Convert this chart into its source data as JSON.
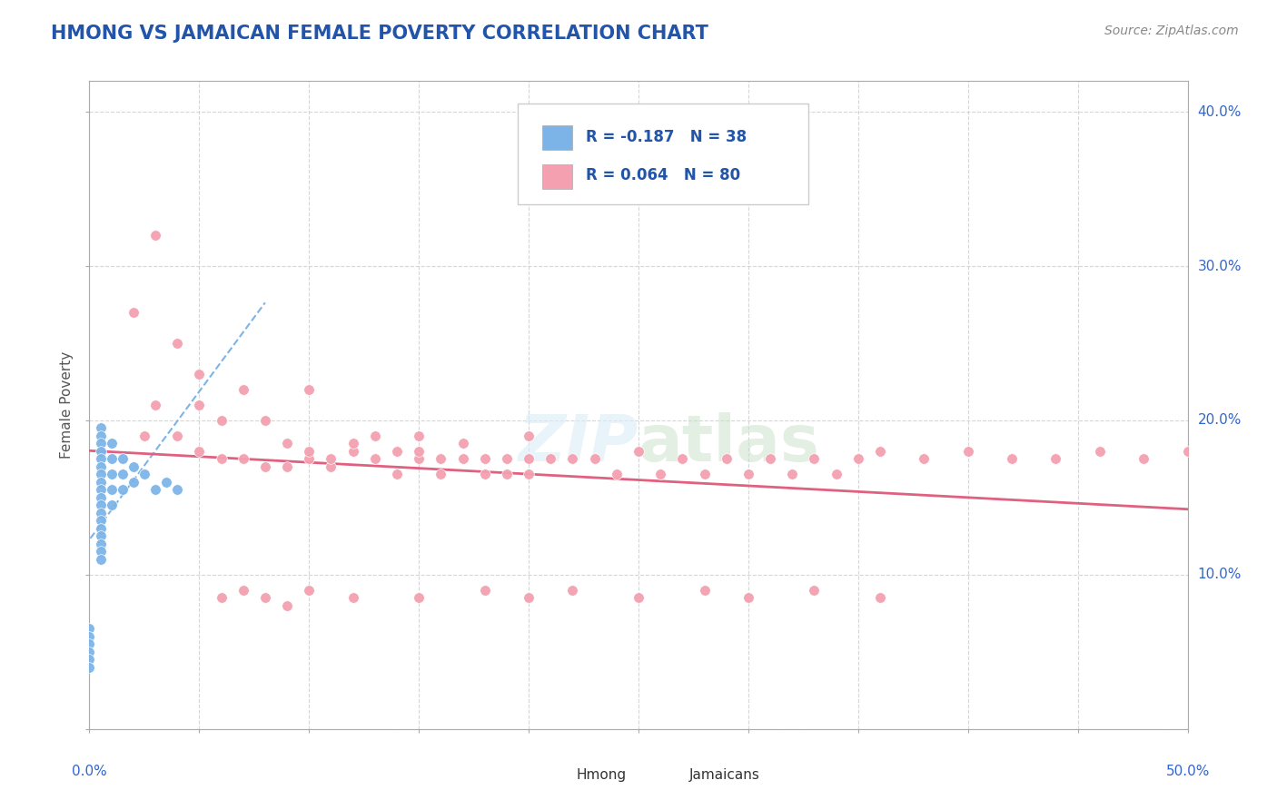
{
  "title": "HMONG VS JAMAICAN FEMALE POVERTY CORRELATION CHART",
  "source": "Source: ZipAtlas.com",
  "ylabel": "Female Poverty",
  "xlim": [
    0.0,
    0.5
  ],
  "ylim": [
    0.0,
    0.42
  ],
  "hmong_color": "#7cb4e8",
  "jamaican_color": "#f4a0b0",
  "jamaican_line_color": "#e06080",
  "hmong_line_color": "#7cb4e8",
  "hmong_R": -0.187,
  "hmong_N": 38,
  "jamaican_R": 0.064,
  "jamaican_N": 80,
  "legend_text_color": "#2255aa",
  "title_color": "#2255aa",
  "watermark": "ZIPatlas",
  "hmong_x": [
    0.005,
    0.005,
    0.005,
    0.005,
    0.005,
    0.005,
    0.005,
    0.005,
    0.005,
    0.005,
    0.005,
    0.005,
    0.005,
    0.005,
    0.005,
    0.005,
    0.005,
    0.005,
    0.01,
    0.01,
    0.01,
    0.01,
    0.01,
    0.015,
    0.015,
    0.015,
    0.02,
    0.02,
    0.025,
    0.03,
    0.035,
    0.04,
    0.0,
    0.0,
    0.0,
    0.0,
    0.0,
    0.0
  ],
  "hmong_y": [
    0.195,
    0.19,
    0.185,
    0.18,
    0.175,
    0.17,
    0.165,
    0.16,
    0.155,
    0.15,
    0.145,
    0.14,
    0.135,
    0.13,
    0.125,
    0.12,
    0.115,
    0.11,
    0.185,
    0.175,
    0.165,
    0.155,
    0.145,
    0.175,
    0.165,
    0.155,
    0.17,
    0.16,
    0.165,
    0.155,
    0.16,
    0.155,
    0.065,
    0.06,
    0.055,
    0.05,
    0.045,
    0.04
  ],
  "jamaican_x": [
    0.02,
    0.025,
    0.03,
    0.04,
    0.05,
    0.05,
    0.06,
    0.06,
    0.07,
    0.07,
    0.08,
    0.08,
    0.09,
    0.09,
    0.1,
    0.1,
    0.11,
    0.11,
    0.12,
    0.12,
    0.13,
    0.13,
    0.14,
    0.14,
    0.15,
    0.15,
    0.16,
    0.16,
    0.17,
    0.17,
    0.18,
    0.18,
    0.19,
    0.19,
    0.2,
    0.2,
    0.21,
    0.22,
    0.23,
    0.24,
    0.25,
    0.26,
    0.27,
    0.28,
    0.29,
    0.3,
    0.31,
    0.32,
    0.33,
    0.34,
    0.35,
    0.36,
    0.38,
    0.4,
    0.42,
    0.44,
    0.46,
    0.48,
    0.5,
    0.03,
    0.04,
    0.05,
    0.06,
    0.07,
    0.08,
    0.09,
    0.1,
    0.12,
    0.15,
    0.18,
    0.2,
    0.22,
    0.25,
    0.28,
    0.3,
    0.33,
    0.36,
    0.1,
    0.15,
    0.2
  ],
  "jamaican_y": [
    0.27,
    0.19,
    0.32,
    0.19,
    0.18,
    0.21,
    0.175,
    0.2,
    0.175,
    0.22,
    0.17,
    0.2,
    0.17,
    0.185,
    0.175,
    0.18,
    0.17,
    0.175,
    0.18,
    0.185,
    0.175,
    0.19,
    0.165,
    0.18,
    0.175,
    0.19,
    0.175,
    0.165,
    0.175,
    0.185,
    0.165,
    0.175,
    0.165,
    0.175,
    0.175,
    0.165,
    0.175,
    0.175,
    0.175,
    0.165,
    0.18,
    0.165,
    0.175,
    0.165,
    0.175,
    0.165,
    0.175,
    0.165,
    0.175,
    0.165,
    0.175,
    0.18,
    0.175,
    0.18,
    0.175,
    0.175,
    0.18,
    0.175,
    0.18,
    0.21,
    0.25,
    0.23,
    0.085,
    0.09,
    0.085,
    0.08,
    0.09,
    0.085,
    0.085,
    0.09,
    0.085,
    0.09,
    0.085,
    0.09,
    0.085,
    0.09,
    0.085,
    0.22,
    0.18,
    0.19
  ]
}
